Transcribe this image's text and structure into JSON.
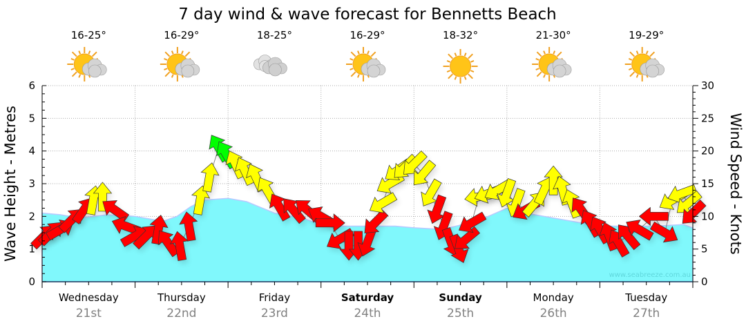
{
  "chart_data": {
    "type": "area+wind-arrows",
    "title": "7 day wind & wave forecast for Bennetts Beach",
    "ylabel_left": "Wave Height - Metres",
    "ylabel_right": "Wind Speed - Knots",
    "ylim_left": [
      0,
      6
    ],
    "ylim_right": [
      0,
      30
    ],
    "yticks_left": [
      "0",
      "1",
      "2",
      "3",
      "4",
      "5",
      "6"
    ],
    "yticks_right": [
      "0",
      "5",
      "10",
      "15",
      "20",
      "25",
      "30"
    ],
    "grid": true,
    "watermark": "www.seabreeze.com.au",
    "days": [
      {
        "day": "Wednesday",
        "date": "21st",
        "temp": "16-25°",
        "weather": "partly-cloudy",
        "bold": false
      },
      {
        "day": "Thursday",
        "date": "22nd",
        "temp": "16-29°",
        "weather": "partly-cloudy",
        "bold": false
      },
      {
        "day": "Friday",
        "date": "23rd",
        "temp": "18-25°",
        "weather": "cloudy",
        "bold": false
      },
      {
        "day": "Saturday",
        "date": "24th",
        "temp": "16-29°",
        "weather": "partly-cloudy",
        "bold": true
      },
      {
        "day": "Sunday",
        "date": "25th",
        "temp": "18-32°",
        "weather": "sunny",
        "bold": true
      },
      {
        "day": "Monday",
        "date": "26th",
        "temp": "21-30°",
        "weather": "partly-cloudy",
        "bold": false
      },
      {
        "day": "Tuesday",
        "date": "27th",
        "temp": "19-29°",
        "weather": "partly-cloudy",
        "bold": false
      }
    ],
    "wave_height_m": {
      "t_days": [
        0,
        0.2,
        0.4,
        0.7,
        1.0,
        1.3,
        1.45,
        1.6,
        1.75,
        2.0,
        2.2,
        2.5,
        2.8,
        3.0,
        3.2,
        3.5,
        3.8,
        4.0,
        4.3,
        4.6,
        4.8,
        5.0,
        5.2,
        5.5,
        5.8,
        6.0,
        6.3,
        6.6,
        6.9,
        7.0
      ],
      "values": [
        2.1,
        2.05,
        1.95,
        2.05,
        2.0,
        1.85,
        2.0,
        2.3,
        2.5,
        2.55,
        2.45,
        2.1,
        1.95,
        1.75,
        1.7,
        1.7,
        1.7,
        1.65,
        1.6,
        1.8,
        2.0,
        2.25,
        2.1,
        1.95,
        1.8,
        1.7,
        1.7,
        1.7,
        1.75,
        1.65
      ]
    },
    "wind": [
      {
        "t": 0.02,
        "kn": 7,
        "dir": 45,
        "color": "#ff0000"
      },
      {
        "t": 0.1,
        "kn": 7.5,
        "dir": 45,
        "color": "#ff0000"
      },
      {
        "t": 0.2,
        "kn": 8,
        "dir": 60,
        "color": "#ff0000"
      },
      {
        "t": 0.32,
        "kn": 9.5,
        "dir": 45,
        "color": "#ff0000"
      },
      {
        "t": 0.45,
        "kn": 11,
        "dir": 35,
        "color": "#ff0000"
      },
      {
        "t": 0.55,
        "kn": 12.5,
        "dir": 10,
        "color": "#ffff00"
      },
      {
        "t": 0.65,
        "kn": 13,
        "dir": 0,
        "color": "#ffff00"
      },
      {
        "t": 0.78,
        "kn": 11,
        "dir": -55,
        "color": "#ff0000"
      },
      {
        "t": 0.9,
        "kn": 8.5,
        "dir": -70,
        "color": "#ff0000"
      },
      {
        "t": 1.0,
        "kn": 7,
        "dir": 60,
        "color": "#ff0000"
      },
      {
        "t": 1.12,
        "kn": 7,
        "dir": 45,
        "color": "#ff0000"
      },
      {
        "t": 1.25,
        "kn": 8,
        "dir": 10,
        "color": "#ff0000"
      },
      {
        "t": 1.35,
        "kn": 6,
        "dir": -35,
        "color": "#ff0000"
      },
      {
        "t": 1.48,
        "kn": 5.5,
        "dir": -10,
        "color": "#ff0000"
      },
      {
        "t": 1.58,
        "kn": 8.5,
        "dir": -10,
        "color": "#ff0000"
      },
      {
        "t": 1.7,
        "kn": 12.5,
        "dir": 10,
        "color": "#ffff00"
      },
      {
        "t": 1.8,
        "kn": 16,
        "dir": 10,
        "color": "#ffff00"
      },
      {
        "t": 1.9,
        "kn": 20.5,
        "dir": -30,
        "color": "#00ff00"
      },
      {
        "t": 1.98,
        "kn": 19.5,
        "dir": -30,
        "color": "#00ff00"
      },
      {
        "t": 2.08,
        "kn": 18,
        "dir": -25,
        "color": "#ffff00"
      },
      {
        "t": 2.18,
        "kn": 17,
        "dir": -25,
        "color": "#ffff00"
      },
      {
        "t": 2.3,
        "kn": 16,
        "dir": -25,
        "color": "#ffff00"
      },
      {
        "t": 2.42,
        "kn": 14,
        "dir": -30,
        "color": "#ffff00"
      },
      {
        "t": 2.55,
        "kn": 11.5,
        "dir": -30,
        "color": "#ff0000"
      },
      {
        "t": 2.7,
        "kn": 11,
        "dir": -40,
        "color": "#ff0000"
      },
      {
        "t": 2.85,
        "kn": 11,
        "dir": -50,
        "color": "#ff0000"
      },
      {
        "t": 3.0,
        "kn": 10,
        "dir": -60,
        "color": "#ff0000"
      },
      {
        "t": 3.1,
        "kn": 9,
        "dir": 90,
        "color": "#ff0000"
      },
      {
        "t": 3.2,
        "kn": 6.5,
        "dir": -120,
        "color": "#ff0000"
      },
      {
        "t": 3.3,
        "kn": 5.5,
        "dir": 180,
        "color": "#ff0000"
      },
      {
        "t": 3.4,
        "kn": 5.5,
        "dir": 180,
        "color": "#ff0000"
      },
      {
        "t": 3.5,
        "kn": 6,
        "dir": 200,
        "color": "#ff0000"
      },
      {
        "t": 3.58,
        "kn": 9,
        "dir": 225,
        "color": "#ff0000"
      },
      {
        "t": 3.66,
        "kn": 12,
        "dir": 240,
        "color": "#ffff00"
      },
      {
        "t": 3.74,
        "kn": 15,
        "dir": 240,
        "color": "#ffff00"
      },
      {
        "t": 3.82,
        "kn": 17,
        "dir": 235,
        "color": "#ffff00"
      },
      {
        "t": 3.9,
        "kn": 17.5,
        "dir": 225,
        "color": "#ffff00"
      },
      {
        "t": 4.0,
        "kn": 18,
        "dir": 225,
        "color": "#ffff00"
      },
      {
        "t": 4.1,
        "kn": 16.5,
        "dir": 220,
        "color": "#ffff00"
      },
      {
        "t": 4.18,
        "kn": 13.5,
        "dir": 210,
        "color": "#ffff00"
      },
      {
        "t": 4.25,
        "kn": 11,
        "dir": 200,
        "color": "#ff0000"
      },
      {
        "t": 4.32,
        "kn": 8.5,
        "dir": 200,
        "color": "#ff0000"
      },
      {
        "t": 4.4,
        "kn": 6,
        "dir": 160,
        "color": "#ff0000"
      },
      {
        "t": 4.48,
        "kn": 5,
        "dir": 160,
        "color": "#ff0000"
      },
      {
        "t": 4.56,
        "kn": 6.5,
        "dir": 230,
        "color": "#ff0000"
      },
      {
        "t": 4.62,
        "kn": 9,
        "dir": 240,
        "color": "#ff0000"
      },
      {
        "t": 4.7,
        "kn": 13,
        "dir": 260,
        "color": "#ffff00"
      },
      {
        "t": 4.8,
        "kn": 13.5,
        "dir": 250,
        "color": "#ffff00"
      },
      {
        "t": 4.9,
        "kn": 14,
        "dir": 240,
        "color": "#ffff00"
      },
      {
        "t": 5.0,
        "kn": 13.5,
        "dir": 200,
        "color": "#ffff00"
      },
      {
        "t": 5.1,
        "kn": 12,
        "dir": 200,
        "color": "#ffff00"
      },
      {
        "t": 5.2,
        "kn": 11,
        "dir": 240,
        "color": "#ff0000"
      },
      {
        "t": 5.3,
        "kn": 12,
        "dir": 40,
        "color": "#ffff00"
      },
      {
        "t": 5.4,
        "kn": 14,
        "dir": 25,
        "color": "#ffff00"
      },
      {
        "t": 5.5,
        "kn": 15.5,
        "dir": 0,
        "color": "#ffff00"
      },
      {
        "t": 5.6,
        "kn": 14,
        "dir": -15,
        "color": "#ffff00"
      },
      {
        "t": 5.7,
        "kn": 12,
        "dir": -20,
        "color": "#ffff00"
      },
      {
        "t": 5.8,
        "kn": 11,
        "dir": -35,
        "color": "#ff0000"
      },
      {
        "t": 5.9,
        "kn": 9,
        "dir": -30,
        "color": "#ff0000"
      },
      {
        "t": 6.0,
        "kn": 8,
        "dir": -30,
        "color": "#ff0000"
      },
      {
        "t": 6.1,
        "kn": 7,
        "dir": -20,
        "color": "#ff0000"
      },
      {
        "t": 6.2,
        "kn": 6,
        "dir": -30,
        "color": "#ff0000"
      },
      {
        "t": 6.3,
        "kn": 7,
        "dir": -40,
        "color": "#ff0000"
      },
      {
        "t": 6.42,
        "kn": 8,
        "dir": -60,
        "color": "#ff0000"
      },
      {
        "t": 6.58,
        "kn": 10,
        "dir": -90,
        "color": "#ff0000"
      },
      {
        "t": 6.7,
        "kn": 7.5,
        "dir": 120,
        "color": "#ff0000"
      },
      {
        "t": 6.78,
        "kn": 12.5,
        "dir": -120,
        "color": "#ffff00"
      },
      {
        "t": 6.88,
        "kn": 13.5,
        "dir": -110,
        "color": "#ffff00"
      },
      {
        "t": 6.95,
        "kn": 12,
        "dir": -130,
        "color": "#ffff00"
      },
      {
        "t": 7.0,
        "kn": 10.5,
        "dir": -135,
        "color": "#ff0000"
      }
    ]
  }
}
